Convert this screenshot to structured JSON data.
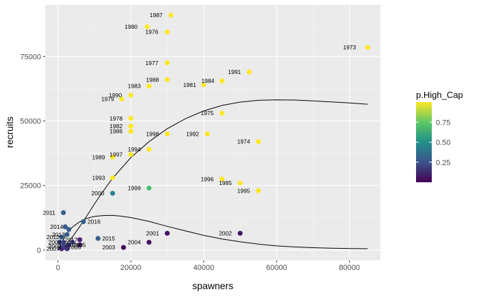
{
  "chart_data": {
    "type": "scatter",
    "xlabel": "spawners",
    "ylabel": "recruits",
    "xlim": [
      -3500,
      88500
    ],
    "ylim": [
      -4000,
      95000
    ],
    "x_ticks": [
      0,
      20000,
      40000,
      60000,
      80000
    ],
    "x_tick_labels": [
      "0",
      "20000",
      "40000",
      "60000",
      "80000"
    ],
    "y_ticks": [
      0,
      25000,
      50000,
      75000
    ],
    "y_tick_labels": [
      "0",
      "25000",
      "50000",
      "75000"
    ],
    "grid": true,
    "legend": {
      "title": "p.High_Cap",
      "placement": "right",
      "range": [
        0.0,
        1.0
      ],
      "breaks": [
        0.25,
        0.5,
        0.75
      ],
      "break_labels": [
        "0.25",
        "0.50",
        "0.75"
      ]
    },
    "points": [
      {
        "year": "1973",
        "x": 85000,
        "y": 78500,
        "p": 1.0
      },
      {
        "year": "1974",
        "x": 55000,
        "y": 42000,
        "p": 1.0
      },
      {
        "year": "1975",
        "x": 45000,
        "y": 53000,
        "p": 1.0
      },
      {
        "year": "1976",
        "x": 30000,
        "y": 84500,
        "p": 1.0
      },
      {
        "year": "1977",
        "x": 30000,
        "y": 72500,
        "p": 1.0
      },
      {
        "year": "1978",
        "x": 20000,
        "y": 51000,
        "p": 1.0
      },
      {
        "year": "1979",
        "x": 17500,
        "y": 58500,
        "p": 1.0
      },
      {
        "year": "1980",
        "x": 24500,
        "y": 86500,
        "p": 1.0
      },
      {
        "year": "1981",
        "x": 40000,
        "y": 64000,
        "p": 1.0
      },
      {
        "year": "1982",
        "x": 20000,
        "y": 48000,
        "p": 1.0
      },
      {
        "year": "1983",
        "x": 25000,
        "y": 63500,
        "p": 1.0
      },
      {
        "year": "1984",
        "x": 45000,
        "y": 65500,
        "p": 1.0
      },
      {
        "year": "1985",
        "x": 50000,
        "y": 26000,
        "p": 1.0
      },
      {
        "year": "1986",
        "x": 20000,
        "y": 46000,
        "p": 1.0
      },
      {
        "year": "1987",
        "x": 31000,
        "y": 91000,
        "p": 1.0
      },
      {
        "year": "1988",
        "x": 30000,
        "y": 66000,
        "p": 1.0
      },
      {
        "year": "1989",
        "x": 15000,
        "y": 36000,
        "p": 1.0
      },
      {
        "year": "1990",
        "x": 20000,
        "y": 60000,
        "p": 1.0
      },
      {
        "year": "1991",
        "x": 52500,
        "y": 69000,
        "p": 1.0
      },
      {
        "year": "1992",
        "x": 41000,
        "y": 45000,
        "p": 1.0
      },
      {
        "year": "1993",
        "x": 15000,
        "y": 28000,
        "p": 1.0
      },
      {
        "year": "1994",
        "x": 25000,
        "y": 39000,
        "p": 1.0
      },
      {
        "year": "1995",
        "x": 55000,
        "y": 23000,
        "p": 1.0
      },
      {
        "year": "1996",
        "x": 45000,
        "y": 27500,
        "p": 1.0
      },
      {
        "year": "1997",
        "x": 20000,
        "y": 37000,
        "p": 1.0
      },
      {
        "year": "1998",
        "x": 30000,
        "y": 45000,
        "p": 1.0
      },
      {
        "year": "1999",
        "x": 25000,
        "y": 24000,
        "p": 0.7
      },
      {
        "year": "2000",
        "x": 15000,
        "y": 22000,
        "p": 0.45
      },
      {
        "year": "2001",
        "x": 30000,
        "y": 6500,
        "p": 0.05
      },
      {
        "year": "2002",
        "x": 50000,
        "y": 6500,
        "p": 0.05
      },
      {
        "year": "2003",
        "x": 18000,
        "y": 1000,
        "p": 0.02
      },
      {
        "year": "2004",
        "x": 25000,
        "y": 3000,
        "p": 0.05
      },
      {
        "year": "2005",
        "x": 3000,
        "y": 2000,
        "p": 0.2
      },
      {
        "year": "2006",
        "x": 2000,
        "y": 1000,
        "p": 0.15
      },
      {
        "year": "2007",
        "x": 1000,
        "y": 500,
        "p": 0.1
      },
      {
        "year": "2008",
        "x": 1500,
        "y": 3000,
        "p": 0.2
      },
      {
        "year": "2009",
        "x": 1500,
        "y": 1500,
        "p": 0.2
      },
      {
        "year": "2010",
        "x": 6000,
        "y": 2000,
        "p": 0.1
      },
      {
        "year": "2011",
        "x": 1500,
        "y": 14500,
        "p": 0.3
      },
      {
        "year": "2012",
        "x": 1000,
        "y": 5000,
        "p": 0.3
      },
      {
        "year": "2013",
        "x": 2500,
        "y": 6000,
        "p": 0.3
      },
      {
        "year": "2014",
        "x": 2000,
        "y": 9000,
        "p": 0.3
      },
      {
        "year": "2015",
        "x": 11000,
        "y": 4500,
        "p": 0.3
      },
      {
        "year": "2016",
        "x": 7000,
        "y": 11000,
        "p": 0.3
      },
      {
        "year": "2017",
        "x": 6000,
        "y": 4000,
        "p": 0.1
      },
      {
        "year": "",
        "x": 3000,
        "y": 8000,
        "p": 0.3
      },
      {
        "year": "",
        "x": 500,
        "y": 3000,
        "p": 0.25
      },
      {
        "year": "",
        "x": 4000,
        "y": 3000,
        "p": 0.2
      },
      {
        "year": "",
        "x": 2500,
        "y": 500,
        "p": 0.15
      }
    ],
    "curves": [
      {
        "points": [
          [
            0,
            0
          ],
          [
            2000,
            1700
          ],
          [
            4000,
            5100
          ],
          [
            6000,
            9100
          ],
          [
            8000,
            13400
          ],
          [
            10000,
            17800
          ],
          [
            12000,
            22000
          ],
          [
            15000,
            27800
          ],
          [
            20000,
            35800
          ],
          [
            25000,
            42000
          ],
          [
            30000,
            47000
          ],
          [
            35000,
            50900
          ],
          [
            40000,
            53900
          ],
          [
            45000,
            56000
          ],
          [
            50000,
            57300
          ],
          [
            55000,
            58000
          ],
          [
            60000,
            58200
          ],
          [
            65000,
            58100
          ],
          [
            70000,
            57800
          ],
          [
            75000,
            57400
          ],
          [
            80000,
            57000
          ],
          [
            85000,
            56500
          ]
        ]
      },
      {
        "points": [
          [
            0,
            0
          ],
          [
            1000,
            2800
          ],
          [
            2000,
            5300
          ],
          [
            3000,
            7300
          ],
          [
            4000,
            8900
          ],
          [
            5000,
            10000
          ],
          [
            6000,
            11000
          ],
          [
            8000,
            12300
          ],
          [
            10000,
            13000
          ],
          [
            12000,
            13300
          ],
          [
            14000,
            13400
          ],
          [
            15000,
            13400
          ],
          [
            17000,
            13200
          ],
          [
            20000,
            12600
          ],
          [
            25000,
            11100
          ],
          [
            30000,
            9200
          ],
          [
            35000,
            7400
          ],
          [
            40000,
            5700
          ],
          [
            45000,
            4300
          ],
          [
            50000,
            3200
          ],
          [
            55000,
            2300
          ],
          [
            60000,
            1600
          ],
          [
            65000,
            1200
          ],
          [
            70000,
            900
          ],
          [
            75000,
            700
          ],
          [
            80000,
            600
          ],
          [
            85000,
            500
          ]
        ]
      }
    ],
    "label_dx": {
      "1973": -36,
      "1974": -31,
      "1975": -31,
      "1976": -32,
      "1977": -32,
      "1978": -31,
      "1979": -30,
      "1980": -33,
      "1981": -30,
      "1982": -31,
      "1983": -31,
      "1984": -30,
      "1985": -31,
      "1986": -31,
      "1987": -31,
      "1988": -31,
      "1989": -30,
      "1990": -32,
      "1991": -31,
      "1992": -31,
      "1993": -30,
      "1994": -31,
      "1995": -31,
      "1996": -31,
      "1997": -31,
      "1998": -31,
      "1999": -31,
      "2000": -31,
      "2001": -31,
      "2002": -31,
      "2003": -31,
      "2004": -31,
      "2005": 6,
      "2006": 4,
      "2007": -22,
      "2008": -22,
      "2009": -22,
      "2010": -22,
      "2011": -30,
      "2012": -22,
      "2013": -22,
      "2014": -22,
      "2015": 6,
      "2016": 6,
      "2017": -22
    }
  }
}
